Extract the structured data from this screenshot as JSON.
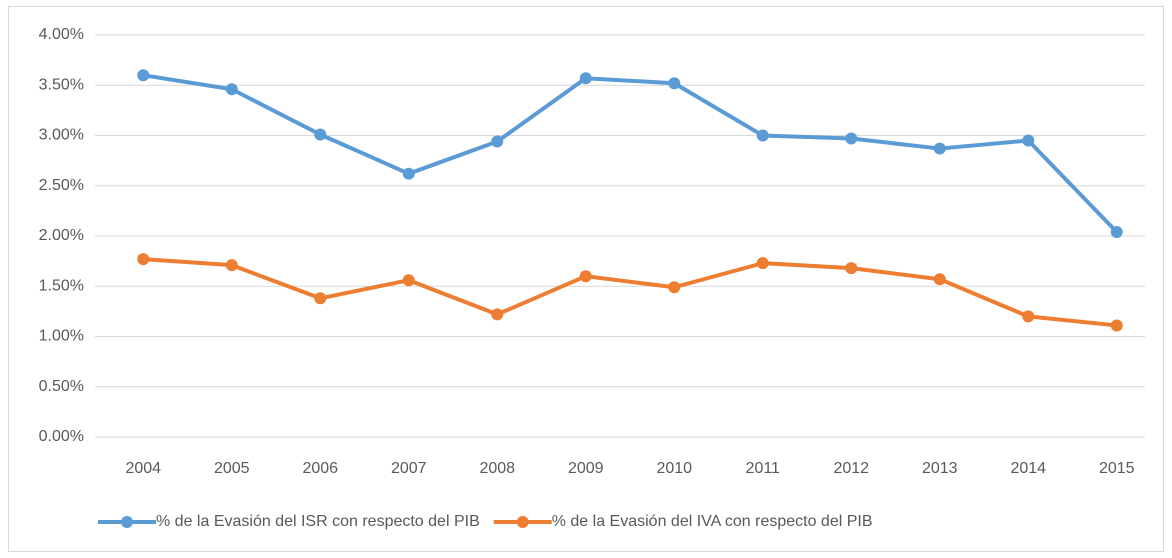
{
  "chart_data": {
    "type": "line",
    "categories": [
      "2004",
      "2005",
      "2006",
      "2007",
      "2008",
      "2009",
      "2010",
      "2011",
      "2012",
      "2013",
      "2014",
      "2015"
    ],
    "series": [
      {
        "name": "% de la Evasión del ISR con respecto del PIB",
        "color": "#5b9bd5",
        "values": [
          3.6,
          3.46,
          3.01,
          2.62,
          2.94,
          3.57,
          3.52,
          3.0,
          2.97,
          2.87,
          2.95,
          2.04
        ]
      },
      {
        "name": "% de la Evasión del IVA con respecto del PIB",
        "color": "#ed7d31",
        "values": [
          1.77,
          1.71,
          1.38,
          1.56,
          1.22,
          1.6,
          1.49,
          1.73,
          1.68,
          1.57,
          1.2,
          1.11
        ]
      }
    ],
    "ylim": [
      0,
      4
    ],
    "yticks": [
      {
        "value": 0,
        "label": "0.00%"
      },
      {
        "value": 0.5,
        "label": "0.50%"
      },
      {
        "value": 1,
        "label": "1.00%"
      },
      {
        "value": 1.5,
        "label": "1.50%"
      },
      {
        "value": 2,
        "label": "2.00%"
      },
      {
        "value": 2.5,
        "label": "2.50%"
      },
      {
        "value": 3,
        "label": "3.00%"
      },
      {
        "value": 3.5,
        "label": "3.50%"
      },
      {
        "value": 4,
        "label": "4.00%"
      }
    ],
    "grid": true,
    "legend": "bottom"
  }
}
